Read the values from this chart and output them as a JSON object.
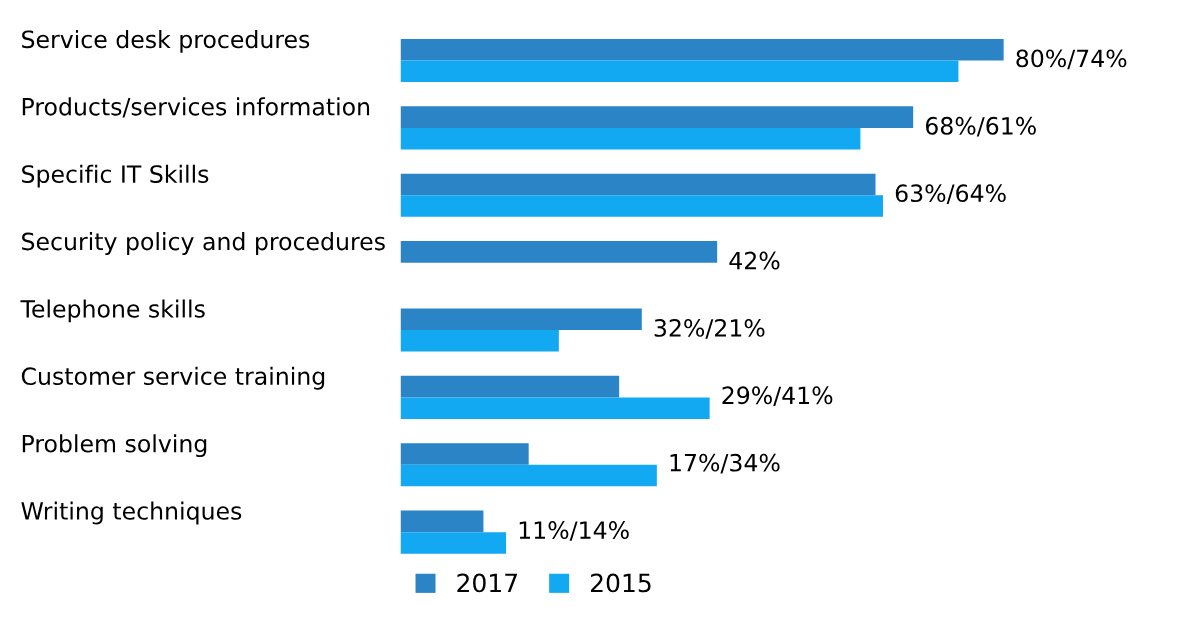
{
  "chart_data": {
    "type": "bar",
    "orientation": "horizontal",
    "categories": [
      "Service desk procedures",
      "Products/services information",
      "Specific IT Skills",
      "Security policy and procedures",
      "Telephone skills",
      "Customer service training",
      "Problem solving",
      "Writing techniques"
    ],
    "series": [
      {
        "name": "2017",
        "color": "#2b84c6",
        "values": [
          80,
          68,
          63,
          42,
          32,
          29,
          17,
          11
        ],
        "value_labels": [
          "80%/",
          "68%/",
          "63%/",
          "42%",
          "32%/",
          "29%/",
          "17%/",
          "11%/"
        ]
      },
      {
        "name": "2015",
        "color": "#12a9f2",
        "values": [
          74,
          61,
          64,
          null,
          21,
          41,
          34,
          14
        ],
        "value_labels": [
          "74%",
          "61%",
          "64%",
          null,
          "21%",
          "41%",
          "34%",
          "14%"
        ]
      }
    ],
    "legend": "bottom"
  }
}
